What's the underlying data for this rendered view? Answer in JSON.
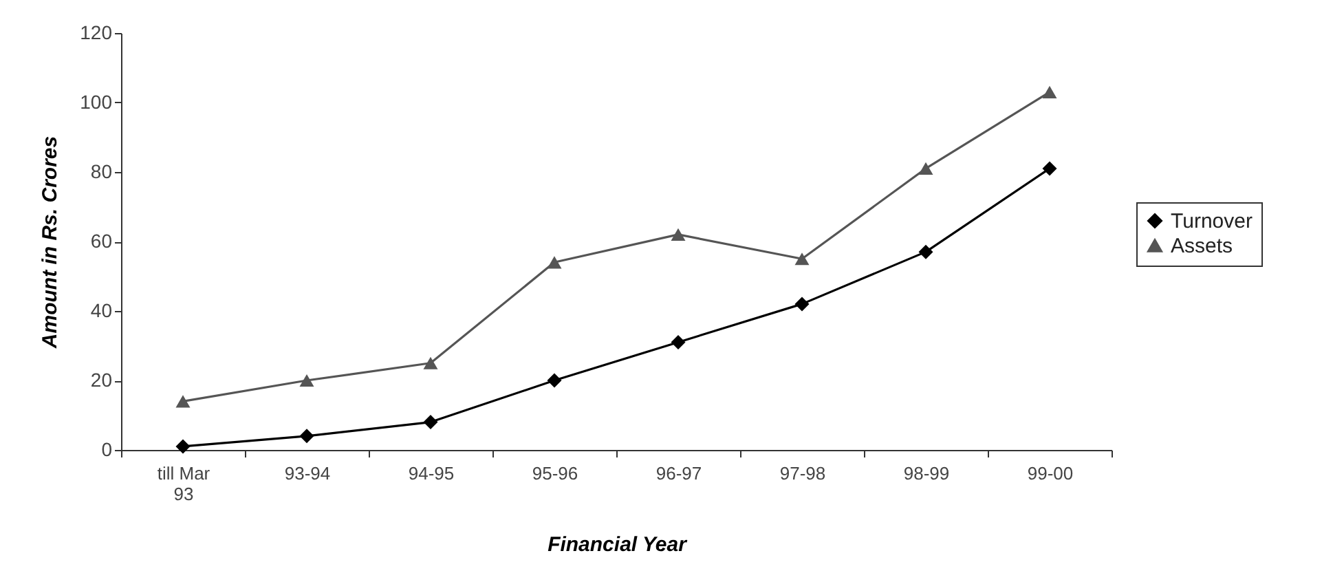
{
  "chart_data": {
    "type": "line",
    "xlabel": "Financial Year",
    "ylabel": "Amount in Rs. Crores",
    "categories": [
      "till Mar\n93",
      "93-94",
      "94-95",
      "95-96",
      "96-97",
      "97-98",
      "98-99",
      "99-00"
    ],
    "series": [
      {
        "name": "Turnover",
        "color": "#000000",
        "marker": "diamond",
        "values": [
          1,
          4,
          8,
          20,
          31,
          42,
          57,
          81
        ]
      },
      {
        "name": "Assets",
        "color": "#555555",
        "marker": "triangle",
        "values": [
          14,
          20,
          25,
          54,
          62,
          55,
          81,
          103
        ]
      }
    ],
    "ylim": [
      0,
      120
    ],
    "yticks": [
      0,
      20,
      40,
      60,
      80,
      100,
      120
    ],
    "grid": false,
    "legend": "right"
  }
}
